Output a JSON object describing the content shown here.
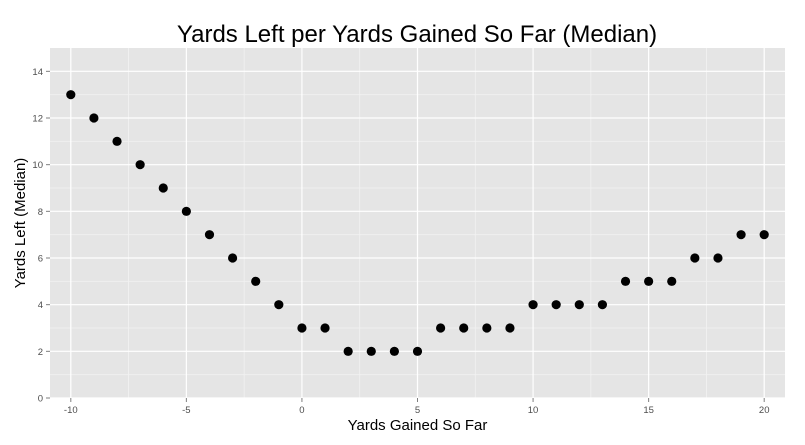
{
  "chart_data": {
    "type": "scatter",
    "title": "Yards Left per Yards Gained So Far (Median)",
    "xlabel": "Yards Gained So Far",
    "ylabel": "Yards Left (Median)",
    "xlim": [
      -10.9,
      20.9
    ],
    "ylim": [
      0,
      15
    ],
    "x_ticks": [
      -10,
      -5,
      0,
      5,
      10,
      15,
      20
    ],
    "y_ticks": [
      0,
      2,
      4,
      6,
      8,
      10,
      12,
      14
    ],
    "grid": true,
    "legend": "none",
    "colors": {
      "panel_background": "#e5e5e5",
      "grid_major": "#ffffff",
      "grid_minor": "#f2f2f2",
      "point": "#000000",
      "tick_label": "#4d4d4d"
    },
    "x": [
      -10,
      -9,
      -8,
      -7,
      -6,
      -5,
      -4,
      -3,
      -2,
      -1,
      0,
      1,
      2,
      3,
      4,
      5,
      6,
      7,
      8,
      9,
      10,
      11,
      12,
      13,
      14,
      15,
      16,
      17,
      18,
      19,
      20
    ],
    "y": [
      13,
      12,
      11,
      10,
      9,
      8,
      7,
      6,
      5,
      4,
      3,
      3,
      2,
      2,
      2,
      2,
      3,
      3,
      3,
      3,
      4,
      4,
      4,
      4,
      5,
      5,
      5,
      6,
      6,
      7,
      7
    ]
  }
}
